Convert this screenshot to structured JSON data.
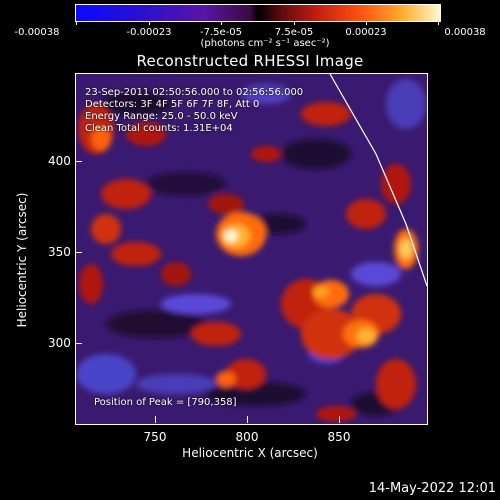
{
  "colorbar": {
    "ticks": [
      "-0.00038",
      "-0.00023",
      "-7.5e-05",
      "7.5e-05",
      "0.00023",
      "0.00038"
    ],
    "unit": "(photons cm⁻² s⁻¹ asec⁻²)"
  },
  "title": "Reconstructed RHESSI Image",
  "info": {
    "time": "23-Sep-2011 02:50:56.000 to 02:56:56.000",
    "detectors": "Detectors: 3F 4F 5F 6F 7F 8F, Att 0",
    "energy": "Energy Range: 25.0 - 50.0 keV",
    "clean": "Clean     Total counts: 1.31E+04",
    "peak": "Position of Peak = [790,358]"
  },
  "axes": {
    "x_ticks": [
      "750",
      "800",
      "850"
    ],
    "y_ticks": [
      "400",
      "350",
      "300"
    ],
    "xlabel": "Heliocentric X (arcsec)",
    "ylabel": "Heliocentric Y (arcsec)"
  },
  "date": "14-May-2022 12:01",
  "colors": {
    "background": "#000000",
    "map_base": "#3a1a70",
    "hot_core": "#fff8d0"
  }
}
